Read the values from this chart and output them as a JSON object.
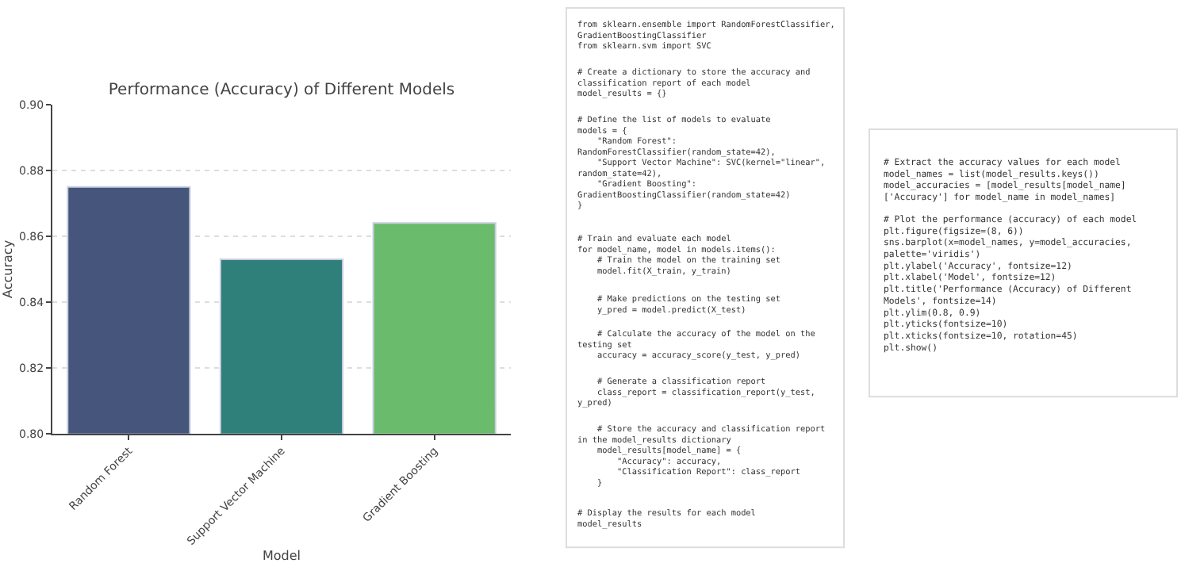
{
  "chart_data": [
    {
      "type": "bar",
      "title": "Performance (Accuracy) of Different Models",
      "xlabel": "Model",
      "ylabel": "Accuracy",
      "categories": [
        "Random Forest",
        "Support Vector Machine",
        "Gradient Boosting"
      ],
      "values": [
        0.875,
        0.853,
        0.864
      ],
      "colors": [
        "#45557c",
        "#2f807a",
        "#6bbb6d"
      ],
      "ylim": [
        0.8,
        0.9
      ],
      "yticks": [
        {
          "value": 0.8,
          "label": "0.80"
        },
        {
          "value": 0.82,
          "label": "0.82"
        },
        {
          "value": 0.84,
          "label": "0.84"
        },
        {
          "value": 0.86,
          "label": "0.86"
        },
        {
          "value": 0.88,
          "label": "0.88"
        },
        {
          "value": 0.9,
          "label": "0.90"
        }
      ],
      "grid": "y"
    },
    {
      "type": "other",
      "annotations": [
        "from sklearn.ensemble import RandomForestClassifier,\nGradientBoostingClassifier\nfrom sklearn.svm import SVC",
        "# Create a dictionary to store the accuracy and\nclassification report of each model\nmodel_results = {}",
        "# Define the list of models to evaluate\nmodels = {\n    \"Random Forest\":\nRandomForestClassifier(random_state=42),\n    \"Support Vector Machine\": SVC(kernel=\"linear\",\nrandom_state=42),\n    \"Gradient Boosting\":\nGradientBoostingClassifier(random_state=42)\n}",
        "# Train and evaluate each model\nfor model_name, model in models.items():\n    # Train the model on the training set\n    model.fit(X_train, y_train)",
        "    # Make predictions on the testing set\n    y_pred = model.predict(X_test)",
        "    # Calculate the accuracy of the model on the\ntesting set\n    accuracy = accuracy_score(y_test, y_pred)",
        "    # Generate a classification report\n    class_report = classification_report(y_test,\ny_pred)",
        "    # Store the accuracy and classification report\nin the model_results dictionary\n    model_results[model_name] = {\n        \"Accuracy\": accuracy,\n        \"Classification Report\": class_report\n    }",
        "# Display the results for each model\nmodel_results"
      ]
    },
    {
      "type": "other",
      "annotations": [
        "# Extract the accuracy values for each model\nmodel_names = list(model_results.keys())\nmodel_accuracies = [model_results[model_name]\n['Accuracy'] for model_name in model_names]",
        "# Plot the performance (accuracy) of each model\nplt.figure(figsize=(8, 6))\nsns.barplot(x=model_names, y=model_accuracies,\npalette='viridis')\nplt.ylabel('Accuracy', fontsize=12)\nplt.xlabel('Model', fontsize=12)\nplt.title('Performance (Accuracy) of Different\nModels', fontsize=14)\nplt.ylim(0.8, 0.9)\nplt.yticks(fontsize=10)\nplt.xticks(fontsize=10, rotation=45)\nplt.show()"
      ]
    }
  ]
}
